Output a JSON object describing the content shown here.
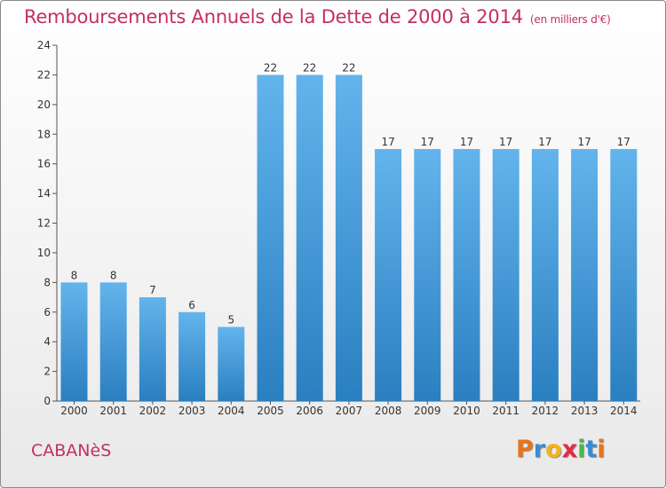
{
  "chart_data": {
    "type": "bar",
    "title": "Remboursements Annuels de la Dette de 2000 à 2014",
    "subtitle": "(en milliers d'€)",
    "categories": [
      "2000",
      "2001",
      "2002",
      "2003",
      "2004",
      "2005",
      "2006",
      "2007",
      "2008",
      "2009",
      "2010",
      "2011",
      "2012",
      "2013",
      "2014"
    ],
    "values": [
      8,
      8,
      7,
      6,
      5,
      22,
      22,
      22,
      17,
      17,
      17,
      17,
      17,
      17,
      17
    ],
    "xlabel": "",
    "ylabel": "",
    "ylim": [
      0,
      24
    ],
    "yticks": [
      0,
      2,
      4,
      6,
      8,
      10,
      12,
      14,
      16,
      18,
      20,
      22,
      24
    ],
    "grid": false,
    "colors": {
      "bar_light": "#63b4ec",
      "bar_dark": "#2a7fc0",
      "axis": "#555555"
    }
  },
  "town": "CABANèS",
  "logo": {
    "letters": [
      "P",
      "r",
      "o",
      "x",
      "i",
      "t",
      "i"
    ],
    "colors": [
      "#e8731c",
      "#3a8bd3",
      "#f1b21c",
      "#e22b46",
      "#4bb84b",
      "#3a8bd3",
      "#e8731c"
    ]
  }
}
